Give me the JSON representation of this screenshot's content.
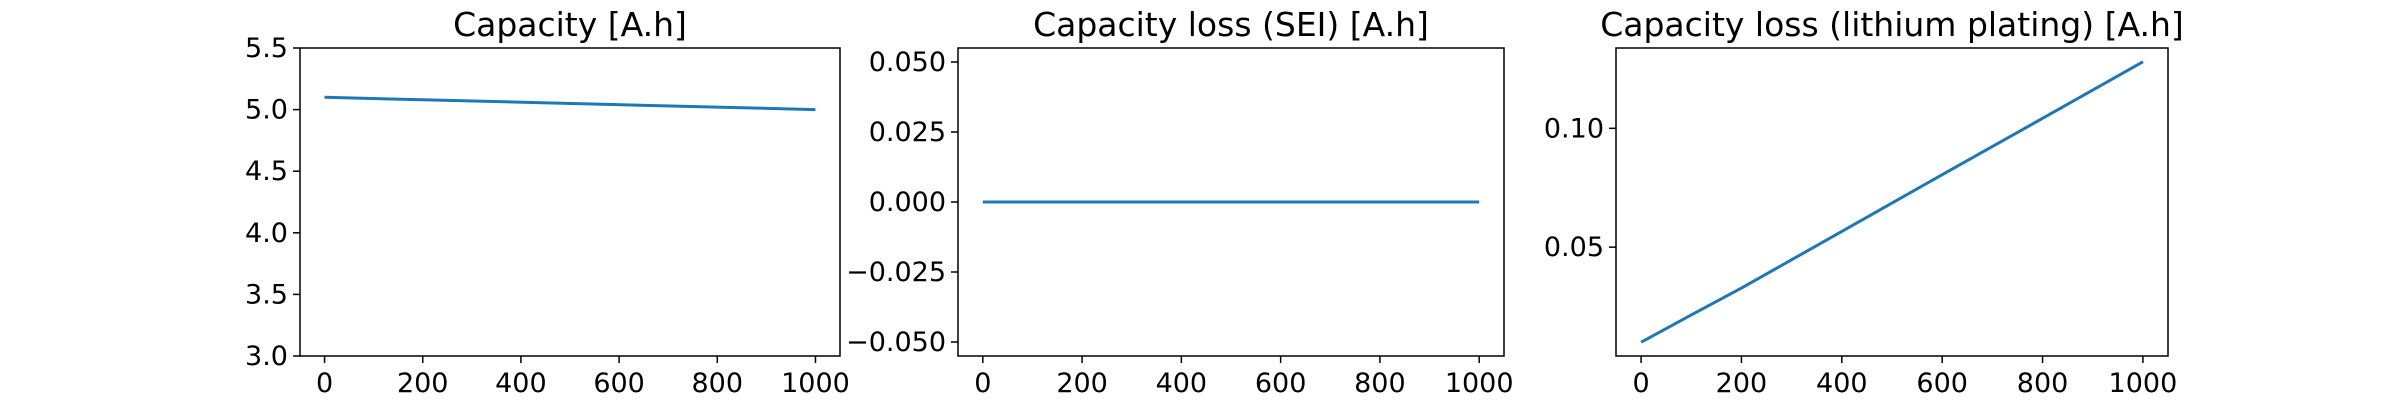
{
  "chart_data": [
    {
      "type": "line",
      "title": "Capacity [A.h]",
      "xlabel": "",
      "ylabel": "",
      "xlim": [
        -50,
        1050
      ],
      "ylim": [
        3.0,
        5.5
      ],
      "x_ticks": [
        0,
        200,
        400,
        600,
        800,
        1000
      ],
      "x_tick_labels": [
        "0",
        "200",
        "400",
        "600",
        "800",
        "1000"
      ],
      "y_ticks": [
        3.0,
        3.5,
        4.0,
        4.5,
        5.0,
        5.5
      ],
      "y_tick_labels": [
        "3.0",
        "3.5",
        "4.0",
        "4.5",
        "5.0",
        "5.5"
      ],
      "grid": false,
      "legend": "none",
      "series": [
        {
          "color": "#1f77b4",
          "x": [
            0,
            1000
          ],
          "y": [
            5.1,
            5.0
          ]
        }
      ]
    },
    {
      "type": "line",
      "title": "Capacity loss (SEI) [A.h]",
      "xlabel": "",
      "ylabel": "",
      "xlim": [
        -50,
        1050
      ],
      "ylim": [
        -0.055,
        0.055
      ],
      "x_ticks": [
        0,
        200,
        400,
        600,
        800,
        1000
      ],
      "x_tick_labels": [
        "0",
        "200",
        "400",
        "600",
        "800",
        "1000"
      ],
      "y_ticks": [
        -0.05,
        -0.025,
        0.0,
        0.025,
        0.05
      ],
      "y_tick_labels": [
        "−0.050",
        "−0.025",
        "0.000",
        "0.025",
        "0.050"
      ],
      "grid": false,
      "legend": "none",
      "series": [
        {
          "color": "#1f77b4",
          "x": [
            0,
            1000
          ],
          "y": [
            0.0,
            0.0
          ]
        }
      ]
    },
    {
      "type": "line",
      "title": "Capacity loss (lithium plating) [A.h]",
      "xlabel": "",
      "ylabel": "",
      "xlim": [
        -50,
        1050
      ],
      "ylim": [
        0.0042,
        0.1338
      ],
      "x_ticks": [
        0,
        200,
        400,
        600,
        800,
        1000
      ],
      "x_tick_labels": [
        "0",
        "200",
        "400",
        "600",
        "800",
        "1000"
      ],
      "y_ticks": [
        0.05,
        0.1
      ],
      "y_tick_labels": [
        "0.05",
        "0.10"
      ],
      "grid": false,
      "legend": "none",
      "series": [
        {
          "color": "#1f77b4",
          "x": [
            0,
            100,
            200,
            400,
            600,
            800,
            1000
          ],
          "y": [
            0.01,
            0.0215,
            0.0328,
            0.0566,
            0.0805,
            0.1042,
            0.128
          ]
        }
      ]
    }
  ]
}
